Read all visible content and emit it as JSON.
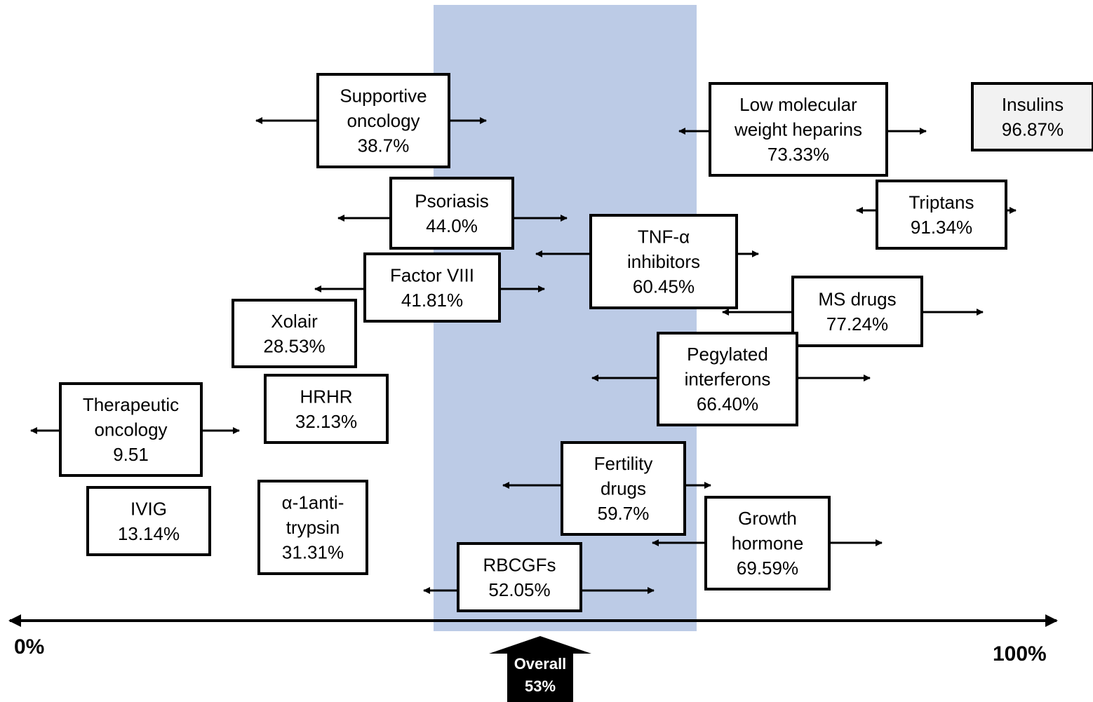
{
  "colors": {
    "band": "#bccbe6",
    "box_border": "#000000",
    "box_fill": "#ffffff",
    "insulins_fill": "#f2f2f2",
    "arrow": "#000000",
    "overall_fill": "#000000",
    "overall_text": "#ffffff"
  },
  "axis": {
    "start_label": "0%",
    "end_label": "100%"
  },
  "overall": {
    "line1": "Overall",
    "line2": "53%"
  },
  "boxes": [
    {
      "id": "supportive-oncology",
      "lines": [
        "Supportive",
        "oncology",
        "38.7%"
      ]
    },
    {
      "id": "low-molecular-weight-heparins",
      "lines": [
        "Low molecular",
        "weight heparins",
        "73.33%"
      ]
    },
    {
      "id": "insulins",
      "lines": [
        "Insulins",
        "96.87%"
      ]
    },
    {
      "id": "psoriasis",
      "lines": [
        "Psoriasis",
        "44.0%"
      ]
    },
    {
      "id": "triptans",
      "lines": [
        "Triptans",
        "91.34%"
      ]
    },
    {
      "id": "tnf-alpha-inhibitors",
      "lines": [
        "TNF-α",
        "inhibitors",
        "60.45%"
      ]
    },
    {
      "id": "factor-viii",
      "lines": [
        "Factor VIII",
        "41.81%"
      ]
    },
    {
      "id": "ms-drugs",
      "lines": [
        "MS drugs",
        "77.24%"
      ]
    },
    {
      "id": "xolair",
      "lines": [
        "Xolair",
        "28.53%"
      ]
    },
    {
      "id": "pegylated-interferons",
      "lines": [
        "Pegylated",
        "interferons",
        "66.40%"
      ]
    },
    {
      "id": "hrhr",
      "lines": [
        "HRHR",
        "32.13%"
      ]
    },
    {
      "id": "therapeutic-oncology",
      "lines": [
        "Therapeutic",
        "oncology",
        "9.51"
      ]
    },
    {
      "id": "fertility-drugs",
      "lines": [
        "Fertility",
        "drugs",
        "59.7%"
      ]
    },
    {
      "id": "ivig",
      "lines": [
        "IVIG",
        "13.14%"
      ]
    },
    {
      "id": "alpha-1-antitrypsin",
      "lines": [
        "α-1anti-",
        "trypsin",
        "31.31%"
      ]
    },
    {
      "id": "growth-hormone",
      "lines": [
        "Growth",
        "hormone",
        "69.59%"
      ]
    },
    {
      "id": "rbcgfs",
      "lines": [
        "RBCGFs",
        "52.05%"
      ]
    }
  ]
}
